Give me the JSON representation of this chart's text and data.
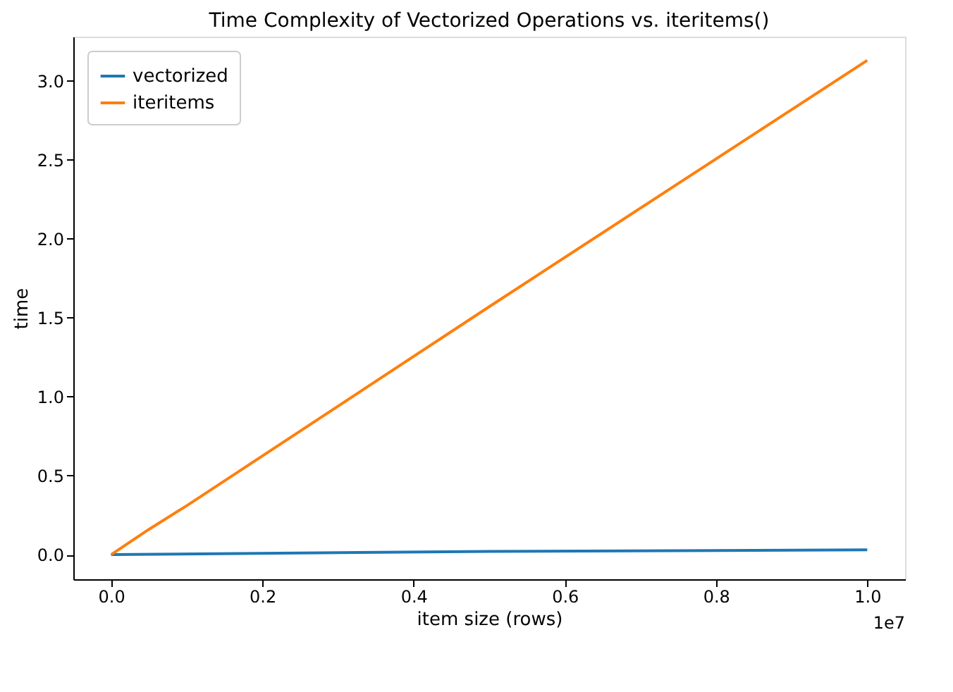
{
  "chart_data": {
    "type": "line",
    "title": "Time Complexity of Vectorized Operations vs. iteritems()",
    "xlabel": "item size (rows)",
    "ylabel": "time",
    "series": [
      {
        "name": "vectorized",
        "color": "#1f77b4",
        "x": [
          0,
          0.5,
          1.0
        ],
        "values": [
          0.0,
          0.02,
          0.03
        ]
      },
      {
        "name": "iteritems",
        "color": "#ff7f0e",
        "x": [
          0,
          0.05,
          0.1,
          0.5,
          1.0
        ],
        "values": [
          0.0,
          0.16,
          0.31,
          1.57,
          3.13
        ]
      }
    ],
    "xlim": [
      -0.05,
      1.05
    ],
    "ylim": [
      -0.156,
      3.28
    ],
    "xticks": [
      {
        "value": 0,
        "label": "0.0"
      },
      {
        "value": 0.2,
        "label": "0.2"
      },
      {
        "value": 0.4,
        "label": "0.4"
      },
      {
        "value": 0.6,
        "label": "0.6"
      },
      {
        "value": 0.8,
        "label": "0.8"
      },
      {
        "value": 1.0,
        "label": "1.0"
      }
    ],
    "yticks": [
      {
        "value": 0,
        "label": "0.0"
      },
      {
        "value": 0.5,
        "label": "0.5"
      },
      {
        "value": 1,
        "label": "1.0"
      },
      {
        "value": 1.5,
        "label": "1.5"
      },
      {
        "value": 2,
        "label": "2.0"
      },
      {
        "value": 2.5,
        "label": "2.5"
      },
      {
        "value": 3,
        "label": "3.0"
      }
    ],
    "annotations": [
      "1e7"
    ],
    "grid": false,
    "legend": "top left",
    "marker": "none",
    "line_style": "solid"
  }
}
